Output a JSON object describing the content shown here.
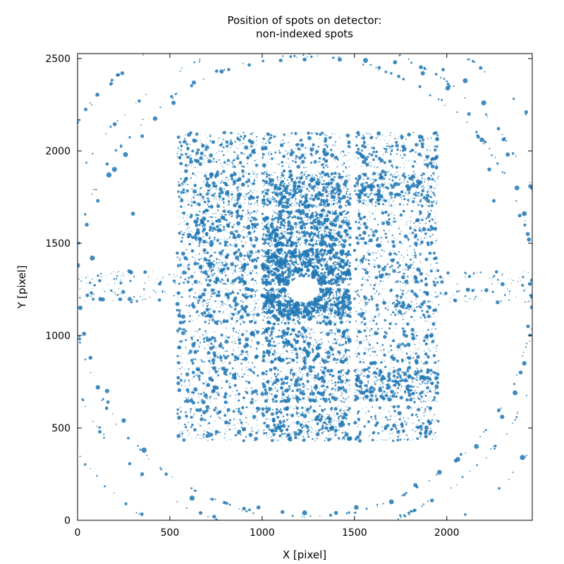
{
  "chart_data": {
    "type": "scatter",
    "title": "Position of spots on detector:",
    "subtitle": "non-indexed spots",
    "xlabel": "X [pixel]",
    "ylabel": "Y [pixel]",
    "xlim": [
      0,
      2463
    ],
    "ylim": [
      0,
      2527
    ],
    "xticks": [
      0,
      500,
      1000,
      1500,
      2000
    ],
    "yticks": [
      0,
      500,
      1000,
      1500,
      2000,
      2500
    ],
    "xtick_labels": [
      "0",
      "500",
      "1000",
      "1500",
      "2000"
    ],
    "ytick_labels": [
      "0",
      "500",
      "1000",
      "1500",
      "2000",
      "2500"
    ],
    "grid": false,
    "legend": "none",
    "color": "#1f77b4",
    "marker_alpha": 0.85,
    "series": [
      {
        "distribution": "Pilatus 6M module grid (5 columns x 12 rows) with vertical gaps near x=983-1000 and x=1470-1500; dense diffuse scatter inside the central region, strongest at x 990-1480, y 1100-1880; beam-stop shadow near (1225, 1250)",
        "approx_count": 9000
      },
      {
        "distribution": "powder-like rings of larger spots centred near (1225, 1265) with radii about 1250, 1350, 1520",
        "points": [
          [
            2255,
            1730
          ],
          [
            2230,
            1900
          ],
          [
            2190,
            2060
          ],
          [
            2120,
            2200
          ],
          [
            2005,
            2340
          ],
          [
            1870,
            2420
          ],
          [
            1720,
            2480
          ],
          [
            1560,
            2490
          ],
          [
            1420,
            2495
          ],
          [
            1230,
            2495
          ],
          [
            1100,
            2490
          ],
          [
            930,
            2465
          ],
          [
            780,
            2430
          ],
          [
            630,
            2370
          ],
          [
            520,
            2260
          ],
          [
            420,
            2175
          ],
          [
            350,
            2080
          ],
          [
            260,
            1980
          ],
          [
            170,
            1870
          ],
          [
            110,
            1730
          ],
          [
            50,
            1600
          ],
          [
            0,
            1380
          ],
          [
            15,
            1150
          ],
          [
            35,
            1010
          ],
          [
            70,
            880
          ],
          [
            110,
            720
          ],
          [
            165,
            640
          ],
          [
            250,
            540
          ],
          [
            360,
            380
          ],
          [
            480,
            250
          ],
          [
            620,
            120
          ],
          [
            740,
            20
          ],
          [
            980,
            70
          ],
          [
            1110,
            45
          ],
          [
            1230,
            40
          ],
          [
            1400,
            40
          ],
          [
            1510,
            70
          ],
          [
            1700,
            100
          ],
          [
            1830,
            190
          ],
          [
            1960,
            260
          ],
          [
            2060,
            330
          ],
          [
            2160,
            400
          ],
          [
            2300,
            560
          ],
          [
            2370,
            690
          ],
          [
            2420,
            850
          ],
          [
            2440,
            1050
          ],
          [
            2450,
            1280
          ],
          [
            2445,
            1520
          ],
          [
            2420,
            1660
          ],
          [
            2380,
            1800
          ],
          [
            2330,
            1980
          ],
          [
            2280,
            2120
          ],
          [
            2200,
            2260
          ],
          [
            2100,
            2380
          ],
          [
            1980,
            2440
          ],
          [
            2430,
            2210
          ],
          [
            2395,
            1650
          ],
          [
            160,
            700
          ],
          [
            300,
            1660
          ],
          [
            80,
            1420
          ],
          [
            2400,
            800
          ],
          [
            2410,
            340
          ],
          [
            350,
            250
          ],
          [
            200,
            1900
          ]
        ]
      }
    ]
  }
}
